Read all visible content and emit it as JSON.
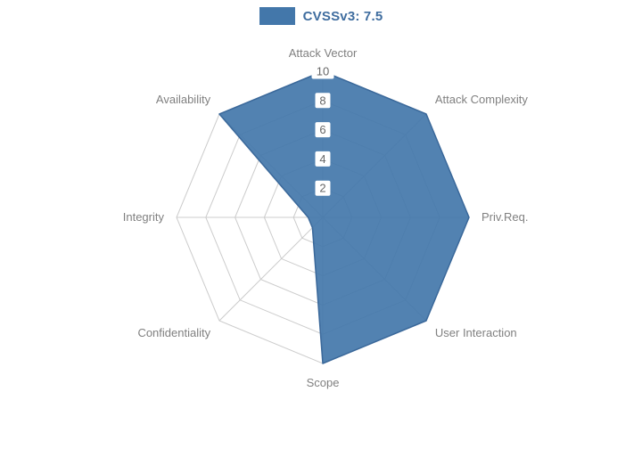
{
  "legend": {
    "label": "CVSSv3: 7.5",
    "swatch_color": "#4377aa",
    "text_color": "#3f6d9f"
  },
  "chart_data": {
    "type": "radar",
    "title": "CVSSv3: 7.5",
    "categories": [
      "Attack Vector",
      "Attack Complexity",
      "Priv.Req.",
      "User Interaction",
      "Scope",
      "Confidentiality",
      "Integrity",
      "Availability"
    ],
    "series": [
      {
        "name": "CVSSv3: 7.5",
        "values": [
          10,
          10,
          10,
          10,
          10,
          1,
          1,
          10
        ],
        "fill_color": "#4377aa",
        "fill_opacity": 0.92,
        "stroke_color": "#3a689a"
      }
    ],
    "radial_ticks": [
      2,
      4,
      6,
      8,
      10
    ],
    "r_max": 10,
    "grid_on": true,
    "grid_color": "#cccccc",
    "label_color": "#808080",
    "tick_color": "#666666",
    "legend_position": "top"
  }
}
